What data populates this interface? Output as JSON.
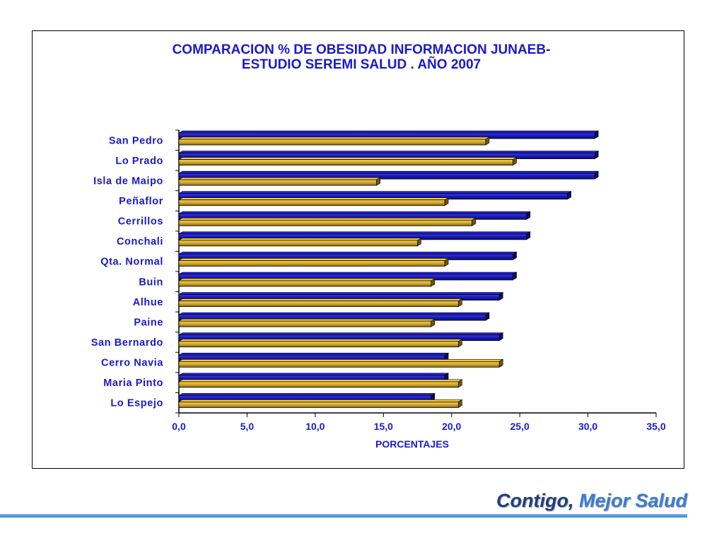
{
  "footer": {
    "slogan_part1": "Contigo,",
    "slogan_part2": "Mejor Salud"
  },
  "chart_data": {
    "type": "bar",
    "orientation": "horizontal",
    "title_line1": "COMPARACION % DE OBESIDAD INFORMACION JUNAEB-",
    "title_line2": "ESTUDIO SEREMI SALUD . AÑO 2007",
    "xlabel": "PORCENTAJES",
    "ylabel": "",
    "xlim": [
      0,
      35
    ],
    "xticks": [
      "0,0",
      "5,0",
      "10,0",
      "15,0",
      "20,0",
      "25,0",
      "30,0",
      "35,0"
    ],
    "categories": [
      "San Pedro",
      "Lo Prado",
      "Isla  de Maipo",
      "Peñaflor",
      "Cerrillos",
      "Conchali",
      "Qta. Normal",
      "Buin",
      "Alhue",
      "Paine",
      "San Bernardo",
      "Cerro Navia",
      "Maria Pinto",
      "Lo Espejo"
    ],
    "series": [
      {
        "values": [
          30.5,
          30.5,
          30.5,
          28.5,
          25.5,
          25.5,
          24.5,
          24.5,
          23.5,
          22.5,
          23.5,
          19.5,
          19.5,
          18.5
        ],
        "color": "#1a1ab4"
      },
      {
        "values": [
          22.5,
          24.5,
          14.5,
          19.5,
          21.5,
          17.5,
          19.5,
          18.5,
          20.5,
          18.5,
          20.5,
          23.5,
          20.5,
          20.5
        ],
        "color": "#d4a82a"
      }
    ],
    "grid": false,
    "legend": "none"
  }
}
